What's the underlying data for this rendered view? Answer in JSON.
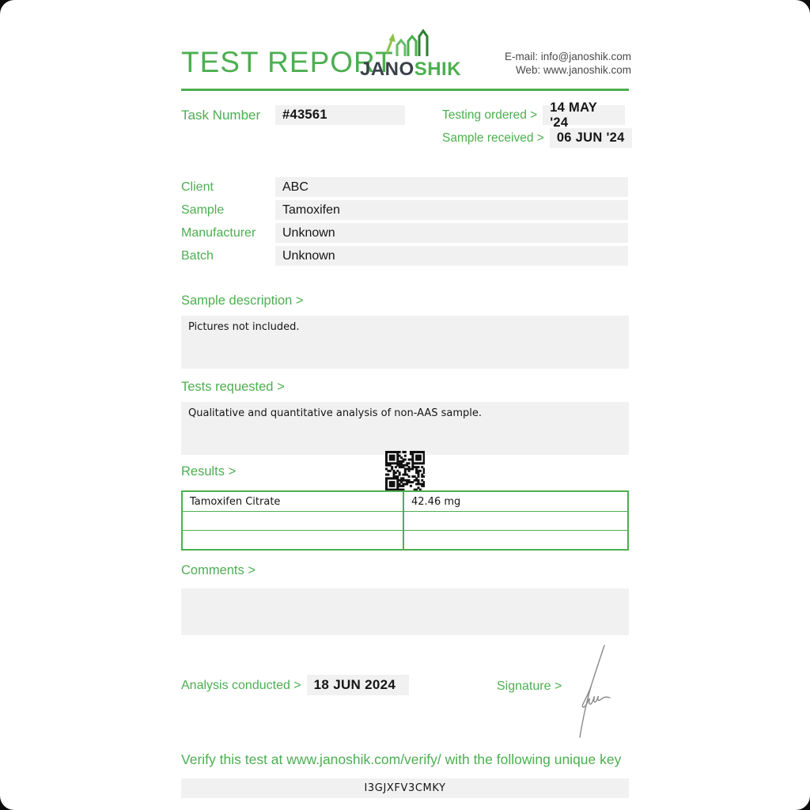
{
  "header": {
    "title": "TEST REPORT",
    "logo": {
      "jano": "JANO",
      "shik": "SHIK"
    },
    "contact": {
      "email_line": "E-mail: info@janoshik.com",
      "web_line": "Web: www.janoshik.com"
    }
  },
  "task": {
    "label": "Task Number",
    "value": "#43561"
  },
  "dates": {
    "ordered_label": "Testing ordered >",
    "ordered_value": "14 MAY '24",
    "received_label": "Sample received >",
    "received_value": "06 JUN '24"
  },
  "info_fields": [
    {
      "label": "Client",
      "value": "ABC"
    },
    {
      "label": "Sample",
      "value": "Tamoxifen"
    },
    {
      "label": "Manufacturer",
      "value": "Unknown"
    },
    {
      "label": "Batch",
      "value": "Unknown"
    }
  ],
  "sample_description": {
    "heading": "Sample description >",
    "content": "Pictures not included."
  },
  "tests_requested": {
    "heading": "Tests requested >",
    "content": "Qualitative and quantitative analysis of non-AAS sample."
  },
  "results": {
    "heading": "Results >",
    "rows": [
      {
        "analyte": "Tamoxifen Citrate",
        "amount": "42.46 mg"
      },
      {
        "analyte": "",
        "amount": ""
      },
      {
        "analyte": "",
        "amount": ""
      }
    ]
  },
  "comments": {
    "heading": "Comments >",
    "content": ""
  },
  "footer": {
    "analysis_label": "Analysis conducted >",
    "analysis_date": "18 JUN 2024",
    "signature_label": "Signature >",
    "verify_text": "Verify this test at www.janoshik.com/verify/ with the following unique key",
    "unique_key": "I3GJXFV3CMKY"
  },
  "icons": {
    "logo_chart": "growth-chart-icon",
    "qr": "qr-code"
  },
  "colors": {
    "accent_green": "#4caf50",
    "logo_navy": "#3a4149",
    "field_background": "#f1f1f1"
  }
}
